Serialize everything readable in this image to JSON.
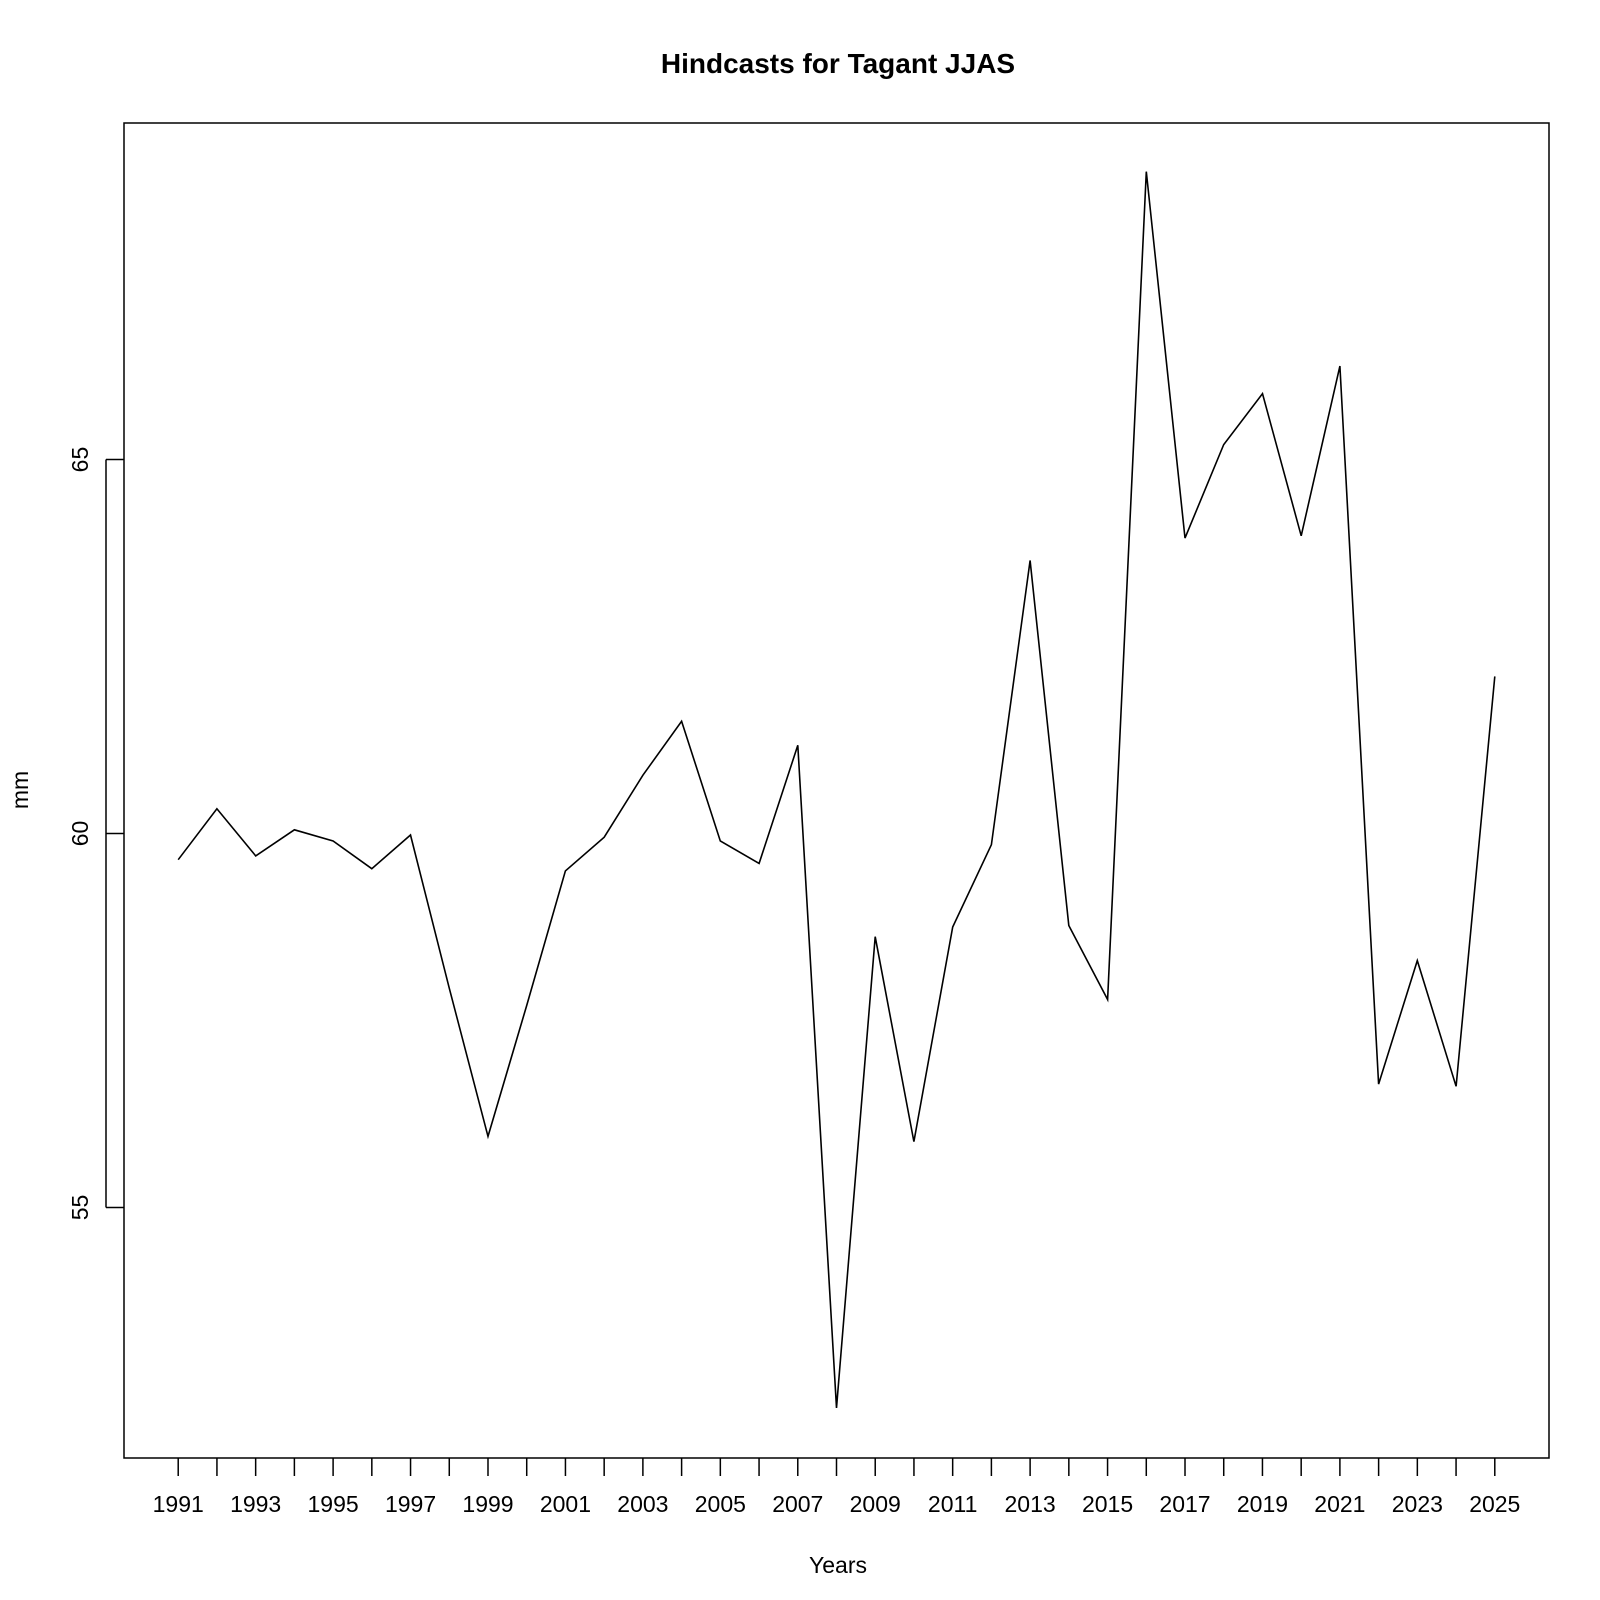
{
  "chart_data": {
    "type": "line",
    "title": "Hindcasts for Tagant JJAS",
    "xlabel": "Years",
    "ylabel": "mm",
    "x": [
      1991,
      1992,
      1993,
      1994,
      1995,
      1996,
      1997,
      1998,
      1999,
      2000,
      2001,
      2002,
      2003,
      2004,
      2005,
      2006,
      2007,
      2008,
      2009,
      2010,
      2011,
      2012,
      2013,
      2014,
      2015,
      2016,
      2017,
      2018,
      2019,
      2020,
      2021,
      2022,
      2023,
      2024,
      2025
    ],
    "series": [
      {
        "values": [
          59.65,
          60.33,
          59.7,
          60.05,
          59.9,
          59.53,
          59.98,
          57.93,
          55.95,
          57.7,
          59.5,
          59.95,
          60.78,
          61.5,
          59.9,
          59.6,
          61.18,
          52.32,
          58.62,
          55.88,
          58.75,
          59.85,
          63.65,
          58.77,
          57.78,
          68.85,
          63.95,
          65.2,
          65.88,
          63.98,
          66.25,
          56.65,
          58.3,
          56.62,
          62.1
        ]
      }
    ],
    "xticks": [
      1991,
      1993,
      1995,
      1997,
      1999,
      2001,
      2003,
      2005,
      2007,
      2009,
      2011,
      2013,
      2015,
      2017,
      2019,
      2021,
      2023,
      2025
    ],
    "yticks": [
      55,
      60,
      65
    ],
    "xlim": [
      1989.6,
      2026.4
    ],
    "ylim": [
      51.65,
      69.5
    ],
    "line_color": "#000000",
    "grid": false,
    "legend": false
  }
}
